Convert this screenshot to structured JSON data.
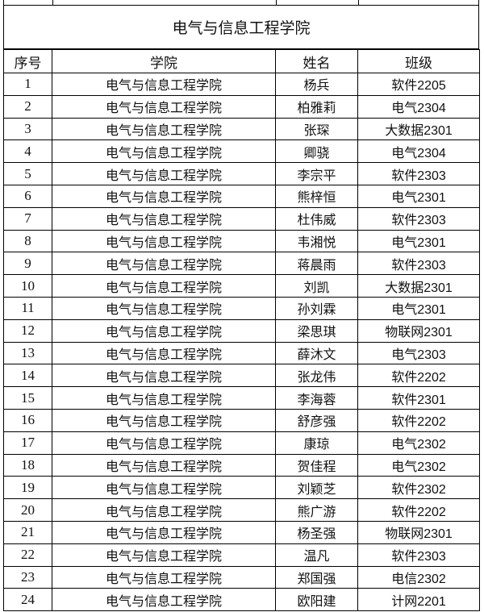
{
  "table": {
    "title": "电气与信息工程学院",
    "headers": [
      "序号",
      "学院",
      "姓名",
      "班级"
    ],
    "rows": [
      [
        "1",
        "电气与信息工程学院",
        "杨兵",
        "软件2205"
      ],
      [
        "2",
        "电气与信息工程学院",
        "柏雅莉",
        "电气2304"
      ],
      [
        "3",
        "电气与信息工程学院",
        "张琛",
        "大数据2301"
      ],
      [
        "4",
        "电气与信息工程学院",
        "卿骁",
        "电气2304"
      ],
      [
        "5",
        "电气与信息工程学院",
        "李宗平",
        "软件2303"
      ],
      [
        "6",
        "电气与信息工程学院",
        "熊梓恒",
        "电气2301"
      ],
      [
        "7",
        "电气与信息工程学院",
        "杜伟威",
        "软件2303"
      ],
      [
        "8",
        "电气与信息工程学院",
        "韦湘悦",
        "电气2301"
      ],
      [
        "9",
        "电气与信息工程学院",
        "蒋晨雨",
        "软件2303"
      ],
      [
        "10",
        "电气与信息工程学院",
        "刘凯",
        "大数据2301"
      ],
      [
        "11",
        "电气与信息工程学院",
        "孙刘霖",
        "电气2301"
      ],
      [
        "12",
        "电气与信息工程学院",
        "梁思琪",
        "物联网2301"
      ],
      [
        "13",
        "电气与信息工程学院",
        "薛沐文",
        "电气2303"
      ],
      [
        "14",
        "电气与信息工程学院",
        "张龙伟",
        "软件2202"
      ],
      [
        "15",
        "电气与信息工程学院",
        "李海蓉",
        "软件2301"
      ],
      [
        "16",
        "电气与信息工程学院",
        "舒彦强",
        "软件2202"
      ],
      [
        "17",
        "电气与信息工程学院",
        "康琼",
        "电气2302"
      ],
      [
        "18",
        "电气与信息工程学院",
        "贺佳程",
        "电气2302"
      ],
      [
        "19",
        "电气与信息工程学院",
        "刘颖芝",
        "软件2302"
      ],
      [
        "20",
        "电气与信息工程学院",
        "熊广游",
        "软件2202"
      ],
      [
        "21",
        "电气与信息工程学院",
        "杨圣强",
        "物联网2301"
      ],
      [
        "22",
        "电气与信息工程学院",
        "温凡",
        "软件2303"
      ],
      [
        "23",
        "电气与信息工程学院",
        "郑国强",
        "电信2302"
      ],
      [
        "24",
        "电气与信息工程学院",
        "欧阳建",
        "计网2201"
      ]
    ]
  }
}
